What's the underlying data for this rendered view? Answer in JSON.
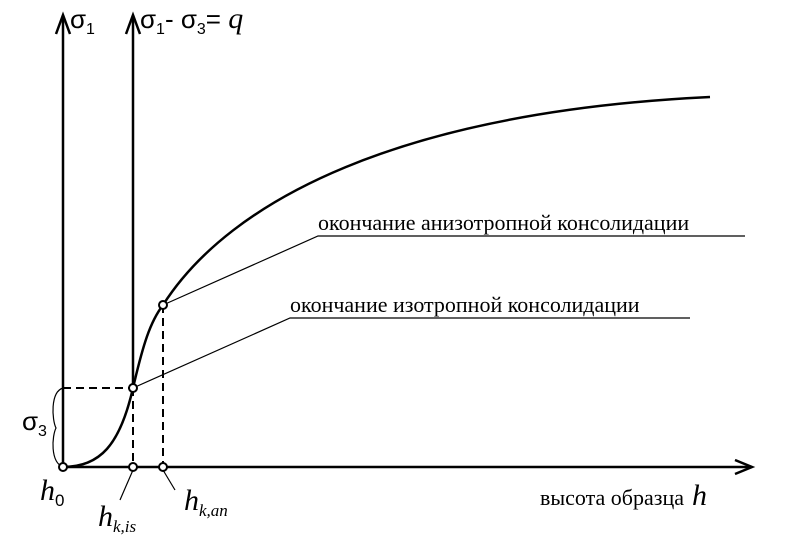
{
  "axes": {
    "y1_label": {
      "symbol": "σ",
      "sub": "1"
    },
    "y2_label": {
      "symbol1": "σ",
      "sub1": "1",
      "op": "- ",
      "symbol2": "σ",
      "sub2": "3",
      "eq": "= ",
      "var": "q"
    },
    "x_label": {
      "text": "высота образца",
      "var": "h"
    }
  },
  "sigma3": {
    "symbol": "σ",
    "sub": "3"
  },
  "points": [
    {
      "symbol": "h",
      "sub": "0"
    },
    {
      "symbol": "h",
      "sub": "k,is"
    },
    {
      "symbol": "h",
      "sub": "k,an"
    }
  ],
  "annotations": [
    "окончание анизотропной консолидации",
    "окончание изотропной консолидации"
  ]
}
